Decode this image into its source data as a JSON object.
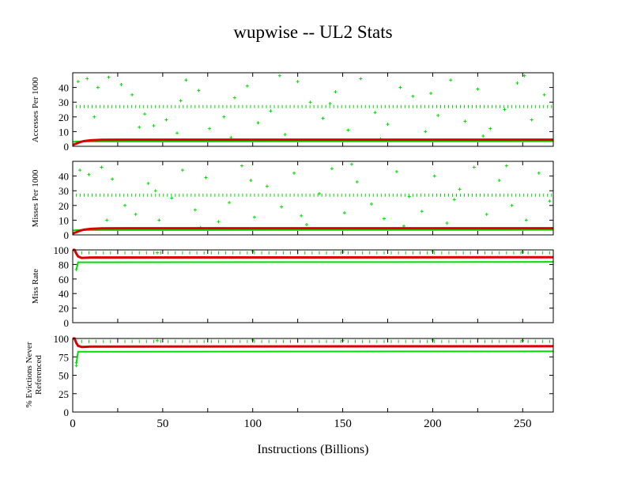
{
  "chart_data": {
    "title": "wupwise -- UL2  Stats",
    "xlabel": "Instructions (Billions)",
    "xlim": [
      0,
      267
    ],
    "xticks": [
      0,
      50,
      100,
      150,
      200,
      250
    ],
    "xminor": [
      25,
      75,
      125,
      175,
      225
    ],
    "colors": {
      "red": "#dd0000",
      "green": "#00dd00"
    },
    "panels": [
      {
        "type": "line+scatter",
        "ylabel": "Accesses Per 1000",
        "ylim": [
          0,
          50
        ],
        "yticks": [
          0,
          10,
          20,
          30,
          40
        ],
        "red_line": [
          [
            0,
            1
          ],
          [
            2,
            1.8
          ],
          [
            4,
            2.8
          ],
          [
            6,
            3.5
          ],
          [
            10,
            4.1
          ],
          [
            15,
            4.4
          ],
          [
            30,
            4.5
          ],
          [
            267,
            4.5
          ]
        ],
        "green_line": [
          [
            0,
            3
          ],
          [
            3,
            3.3
          ],
          [
            267,
            3.4
          ]
        ],
        "band": {
          "y": 27,
          "from": 2,
          "to": 267,
          "step": 2.2
        },
        "scatter": [
          [
            3,
            44
          ],
          [
            8,
            46
          ],
          [
            14,
            40
          ],
          [
            20,
            47
          ],
          [
            27,
            42
          ],
          [
            33,
            35
          ],
          [
            40,
            22
          ],
          [
            45,
            14
          ],
          [
            52,
            18
          ],
          [
            58,
            9
          ],
          [
            63,
            45
          ],
          [
            70,
            38
          ],
          [
            76,
            12
          ],
          [
            84,
            20
          ],
          [
            90,
            33
          ],
          [
            97,
            41
          ],
          [
            103,
            16
          ],
          [
            110,
            24
          ],
          [
            118,
            8
          ],
          [
            125,
            44
          ],
          [
            132,
            30
          ],
          [
            139,
            19
          ],
          [
            146,
            37
          ],
          [
            153,
            11
          ],
          [
            160,
            46
          ],
          [
            168,
            23
          ],
          [
            175,
            15
          ],
          [
            182,
            40
          ],
          [
            189,
            34
          ],
          [
            196,
            10
          ],
          [
            203,
            21
          ],
          [
            210,
            45
          ],
          [
            218,
            17
          ],
          [
            225,
            39
          ],
          [
            232,
            12
          ],
          [
            240,
            25
          ],
          [
            247,
            43
          ],
          [
            255,
            18
          ],
          [
            262,
            35
          ],
          [
            12,
            20
          ],
          [
            37,
            13
          ],
          [
            60,
            31
          ],
          [
            88,
            6
          ],
          [
            115,
            48
          ],
          [
            143,
            29
          ],
          [
            171,
            5
          ],
          [
            199,
            36
          ],
          [
            228,
            7
          ],
          [
            251,
            48
          ]
        ]
      },
      {
        "type": "line+scatter",
        "ylabel": "Misses Per 1000",
        "ylim": [
          0,
          50
        ],
        "yticks": [
          0,
          10,
          20,
          30,
          40
        ],
        "red_line": [
          [
            0,
            1
          ],
          [
            2,
            1.8
          ],
          [
            4,
            2.8
          ],
          [
            6,
            3.5
          ],
          [
            10,
            4.1
          ],
          [
            15,
            4.4
          ],
          [
            30,
            4.5
          ],
          [
            267,
            4.5
          ]
        ],
        "green_line": [
          [
            0,
            3
          ],
          [
            3,
            3.3
          ],
          [
            267,
            3.4
          ]
        ],
        "band": {
          "y": 27,
          "from": 2,
          "to": 267,
          "step": 2.2
        },
        "scatter": [
          [
            4,
            44
          ],
          [
            9,
            41
          ],
          [
            16,
            46
          ],
          [
            22,
            38
          ],
          [
            29,
            20
          ],
          [
            35,
            14
          ],
          [
            42,
            35
          ],
          [
            48,
            10
          ],
          [
            55,
            25
          ],
          [
            61,
            44
          ],
          [
            68,
            17
          ],
          [
            74,
            39
          ],
          [
            81,
            9
          ],
          [
            87,
            22
          ],
          [
            94,
            47
          ],
          [
            101,
            12
          ],
          [
            108,
            33
          ],
          [
            116,
            19
          ],
          [
            123,
            42
          ],
          [
            130,
            7
          ],
          [
            137,
            28
          ],
          [
            144,
            45
          ],
          [
            151,
            15
          ],
          [
            158,
            36
          ],
          [
            166,
            21
          ],
          [
            173,
            11
          ],
          [
            180,
            43
          ],
          [
            187,
            26
          ],
          [
            194,
            16
          ],
          [
            201,
            40
          ],
          [
            208,
            8
          ],
          [
            215,
            31
          ],
          [
            223,
            46
          ],
          [
            230,
            14
          ],
          [
            237,
            37
          ],
          [
            244,
            20
          ],
          [
            252,
            10
          ],
          [
            259,
            42
          ],
          [
            265,
            23
          ],
          [
            19,
            10
          ],
          [
            46,
            30
          ],
          [
            71,
            5
          ],
          [
            99,
            37
          ],
          [
            127,
            13
          ],
          [
            155,
            48
          ],
          [
            184,
            6
          ],
          [
            212,
            24
          ],
          [
            241,
            47
          ]
        ]
      },
      {
        "type": "line+scatter",
        "ylabel": "Miss Rate",
        "ylim": [
          0,
          100
        ],
        "yticks": [
          0,
          20,
          40,
          60,
          80,
          100
        ],
        "red_line": [
          [
            0,
            100
          ],
          [
            1,
            100
          ],
          [
            2,
            95
          ],
          [
            3,
            91
          ],
          [
            5,
            89
          ],
          [
            10,
            89.5
          ],
          [
            267,
            90
          ]
        ],
        "green_line": [
          [
            2,
            73
          ],
          [
            3,
            83
          ],
          [
            267,
            83.5
          ]
        ],
        "band": {
          "y": 96,
          "from": 5,
          "to": 267,
          "step": 4
        },
        "scatter": [
          [
            2,
            73
          ],
          [
            47,
            96
          ],
          [
            100,
            98
          ],
          [
            150,
            97
          ],
          [
            200,
            98
          ],
          [
            250,
            97
          ]
        ]
      },
      {
        "type": "line+scatter",
        "ylabel": "% Evictions Never Referenced",
        "ylim": [
          0,
          100
        ],
        "yticks": [
          0,
          25,
          50,
          75,
          100
        ],
        "red_line": [
          [
            0,
            100
          ],
          [
            1,
            100
          ],
          [
            2,
            94
          ],
          [
            3,
            90
          ],
          [
            5,
            88.5
          ],
          [
            10,
            89
          ],
          [
            267,
            89.5
          ]
        ],
        "green_line": [
          [
            2,
            66
          ],
          [
            3,
            82
          ],
          [
            267,
            82.5
          ]
        ],
        "band": {
          "y": 96,
          "from": 5,
          "to": 267,
          "step": 4
        },
        "scatter": [
          [
            2,
            63
          ],
          [
            2,
            67
          ],
          [
            47,
            97
          ],
          [
            100,
            98
          ],
          [
            150,
            97
          ],
          [
            200,
            98
          ],
          [
            250,
            97
          ]
        ]
      }
    ]
  }
}
